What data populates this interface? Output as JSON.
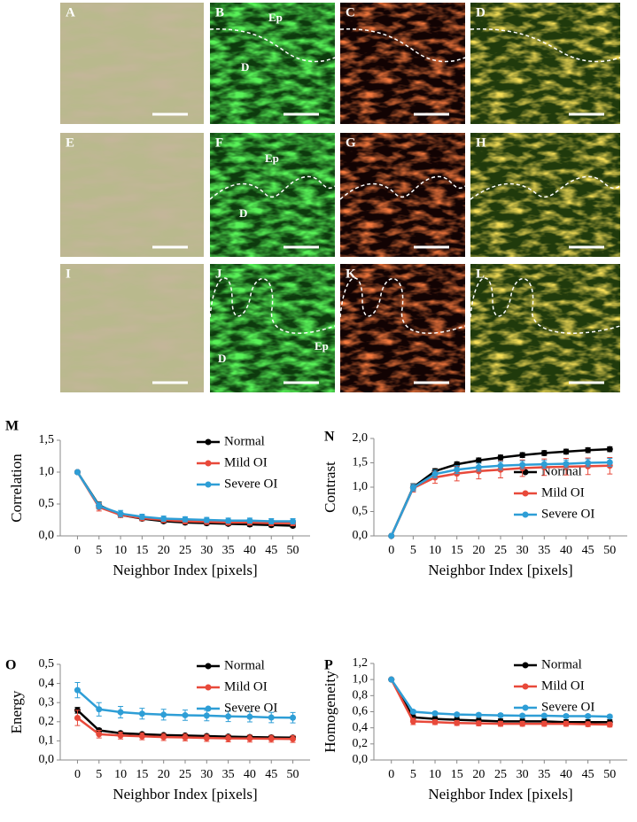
{
  "image_panels": [
    {
      "label": "A"
    },
    {
      "label": "B",
      "annotations": [
        "Ep",
        "D"
      ]
    },
    {
      "label": "C"
    },
    {
      "label": "D"
    },
    {
      "label": "E"
    },
    {
      "label": "F",
      "annotations": [
        "Ep",
        "D"
      ]
    },
    {
      "label": "G"
    },
    {
      "label": "H"
    },
    {
      "label": "I"
    },
    {
      "label": "J",
      "annotations": [
        "Ep",
        "D"
      ]
    },
    {
      "label": "K"
    },
    {
      "label": "L"
    }
  ],
  "chart_data": [
    {
      "type": "line",
      "panel": "M",
      "y_label": "Correlation",
      "x_label": "Neighbor Index [pixels]",
      "legend": "upper right",
      "x": [
        0,
        5,
        10,
        15,
        20,
        25,
        30,
        35,
        40,
        45,
        50
      ],
      "xlim": [
        -4,
        54
      ],
      "xticks": [
        0,
        5,
        10,
        15,
        20,
        25,
        30,
        35,
        40,
        45,
        50
      ],
      "ylim": [
        0,
        1.5
      ],
      "yticks": [
        {
          "value": 0,
          "label": "0,0"
        },
        {
          "value": 0.5,
          "label": "0,5"
        },
        {
          "value": 1,
          "label": "1,0"
        },
        {
          "value": 1.5,
          "label": "1,5"
        }
      ],
      "series": [
        {
          "name": "Normal",
          "color": "#000000",
          "values": [
            1.0,
            0.48,
            0.33,
            0.27,
            0.23,
            0.21,
            0.2,
            0.19,
            0.18,
            0.17,
            0.16
          ],
          "errors": [
            0.01,
            0.05,
            0.04,
            0.03,
            0.03,
            0.03,
            0.03,
            0.03,
            0.03,
            0.03,
            0.03
          ]
        },
        {
          "name": "Mild OI",
          "color": "#e8493a",
          "values": [
            1.0,
            0.45,
            0.33,
            0.28,
            0.25,
            0.23,
            0.22,
            0.21,
            0.21,
            0.2,
            0.2
          ],
          "errors": [
            0.01,
            0.06,
            0.04,
            0.04,
            0.04,
            0.04,
            0.04,
            0.04,
            0.04,
            0.04,
            0.04
          ]
        },
        {
          "name": "Severe OI",
          "color": "#2e9ed6",
          "values": [
            1.0,
            0.47,
            0.35,
            0.3,
            0.27,
            0.26,
            0.25,
            0.24,
            0.24,
            0.23,
            0.23
          ],
          "errors": [
            0.01,
            0.05,
            0.05,
            0.04,
            0.04,
            0.04,
            0.04,
            0.04,
            0.04,
            0.04,
            0.04
          ]
        }
      ]
    },
    {
      "type": "line",
      "panel": "N",
      "y_label": "Contrast",
      "x_label": "Neighbor Index [pixels]",
      "legend": "lower right",
      "x": [
        0,
        5,
        10,
        15,
        20,
        25,
        30,
        35,
        40,
        45,
        50
      ],
      "xlim": [
        -4,
        54
      ],
      "xticks": [
        0,
        5,
        10,
        15,
        20,
        25,
        30,
        35,
        40,
        45,
        50
      ],
      "ylim": [
        0,
        2
      ],
      "yticks": [
        {
          "value": 0,
          "label": "0,0"
        },
        {
          "value": 0.5,
          "label": "0,5"
        },
        {
          "value": 1,
          "label": "1,0"
        },
        {
          "value": 1.5,
          "label": "1,5"
        },
        {
          "value": 2,
          "label": "2,0"
        }
      ],
      "series": [
        {
          "name": "Normal",
          "color": "#000000",
          "values": [
            0,
            1.0,
            1.33,
            1.47,
            1.55,
            1.61,
            1.66,
            1.7,
            1.73,
            1.76,
            1.78
          ],
          "errors": [
            0,
            0.07,
            0.05,
            0.05,
            0.05,
            0.05,
            0.05,
            0.05,
            0.05,
            0.05,
            0.05
          ]
        },
        {
          "name": "Mild OI",
          "color": "#e8493a",
          "values": [
            0,
            0.98,
            1.2,
            1.28,
            1.33,
            1.36,
            1.39,
            1.41,
            1.42,
            1.43,
            1.44
          ],
          "errors": [
            0,
            0.08,
            0.12,
            0.15,
            0.16,
            0.17,
            0.17,
            0.17,
            0.17,
            0.17,
            0.17
          ]
        },
        {
          "name": "Severe OI",
          "color": "#2e9ed6",
          "values": [
            0,
            0.99,
            1.27,
            1.36,
            1.41,
            1.44,
            1.46,
            1.47,
            1.48,
            1.5,
            1.51
          ],
          "errors": [
            0,
            0.07,
            0.08,
            0.08,
            0.08,
            0.08,
            0.08,
            0.08,
            0.08,
            0.08,
            0.08
          ]
        }
      ]
    },
    {
      "type": "line",
      "panel": "O",
      "y_label": "Energy",
      "x_label": "Neighbor Index [pixels]",
      "legend": "upper right",
      "x": [
        0,
        5,
        10,
        15,
        20,
        25,
        30,
        35,
        40,
        45,
        50
      ],
      "xlim": [
        -4,
        54
      ],
      "xticks": [
        0,
        5,
        10,
        15,
        20,
        25,
        30,
        35,
        40,
        45,
        50
      ],
      "ylim": [
        0,
        0.5
      ],
      "yticks": [
        {
          "value": 0,
          "label": "0,0"
        },
        {
          "value": 0.1,
          "label": "0,1"
        },
        {
          "value": 0.2,
          "label": "0,2"
        },
        {
          "value": 0.3,
          "label": "0,3"
        },
        {
          "value": 0.4,
          "label": "0,4"
        },
        {
          "value": 0.5,
          "label": "0,5"
        }
      ],
      "series": [
        {
          "name": "Normal",
          "color": "#000000",
          "values": [
            0.26,
            0.155,
            0.14,
            0.135,
            0.13,
            0.128,
            0.125,
            0.122,
            0.12,
            0.118,
            0.117
          ],
          "errors": [
            0.015,
            0.01,
            0.008,
            0.008,
            0.008,
            0.008,
            0.008,
            0.008,
            0.008,
            0.008,
            0.008
          ]
        },
        {
          "name": "Mild OI",
          "color": "#e8493a",
          "values": [
            0.22,
            0.135,
            0.128,
            0.124,
            0.12,
            0.118,
            0.115,
            0.113,
            0.112,
            0.111,
            0.11
          ],
          "errors": [
            0.04,
            0.02,
            0.018,
            0.018,
            0.018,
            0.018,
            0.018,
            0.018,
            0.018,
            0.018,
            0.018
          ]
        },
        {
          "name": "Severe OI",
          "color": "#2e9ed6",
          "values": [
            0.365,
            0.265,
            0.25,
            0.242,
            0.237,
            0.234,
            0.232,
            0.228,
            0.226,
            0.222,
            0.221
          ],
          "errors": [
            0.04,
            0.035,
            0.03,
            0.028,
            0.028,
            0.027,
            0.027,
            0.027,
            0.027,
            0.027,
            0.027
          ]
        }
      ]
    },
    {
      "type": "line",
      "panel": "P",
      "y_label": "Homogeneity",
      "x_label": "Neighbor Index [pixels]",
      "legend": "upper right",
      "x": [
        0,
        5,
        10,
        15,
        20,
        25,
        30,
        35,
        40,
        45,
        50
      ],
      "xlim": [
        -4,
        54
      ],
      "xticks": [
        0,
        5,
        10,
        15,
        20,
        25,
        30,
        35,
        40,
        45,
        50
      ],
      "ylim": [
        0,
        1.2
      ],
      "yticks": [
        {
          "value": 0,
          "label": "0,0"
        },
        {
          "value": 0.2,
          "label": "0,2"
        },
        {
          "value": 0.4,
          "label": "0,4"
        },
        {
          "value": 0.6,
          "label": "0,6"
        },
        {
          "value": 0.8,
          "label": "0,8"
        },
        {
          "value": 1,
          "label": "1,0"
        },
        {
          "value": 1.2,
          "label": "1,2"
        }
      ],
      "series": [
        {
          "name": "Normal",
          "color": "#000000",
          "values": [
            1.0,
            0.53,
            0.51,
            0.5,
            0.49,
            0.48,
            0.48,
            0.48,
            0.47,
            0.47,
            0.47
          ],
          "errors": [
            0.01,
            0.03,
            0.03,
            0.03,
            0.03,
            0.03,
            0.03,
            0.03,
            0.03,
            0.03,
            0.03
          ]
        },
        {
          "name": "Mild OI",
          "color": "#e8493a",
          "values": [
            1.0,
            0.48,
            0.47,
            0.46,
            0.455,
            0.45,
            0.45,
            0.45,
            0.45,
            0.445,
            0.44
          ],
          "errors": [
            0.01,
            0.04,
            0.03,
            0.03,
            0.03,
            0.03,
            0.03,
            0.03,
            0.03,
            0.03,
            0.03
          ]
        },
        {
          "name": "Severe OI",
          "color": "#2e9ed6",
          "values": [
            1.0,
            0.6,
            0.58,
            0.565,
            0.56,
            0.555,
            0.55,
            0.55,
            0.545,
            0.545,
            0.54
          ],
          "errors": [
            0.01,
            0.02,
            0.02,
            0.02,
            0.02,
            0.02,
            0.02,
            0.02,
            0.02,
            0.02,
            0.02
          ]
        }
      ]
    }
  ]
}
